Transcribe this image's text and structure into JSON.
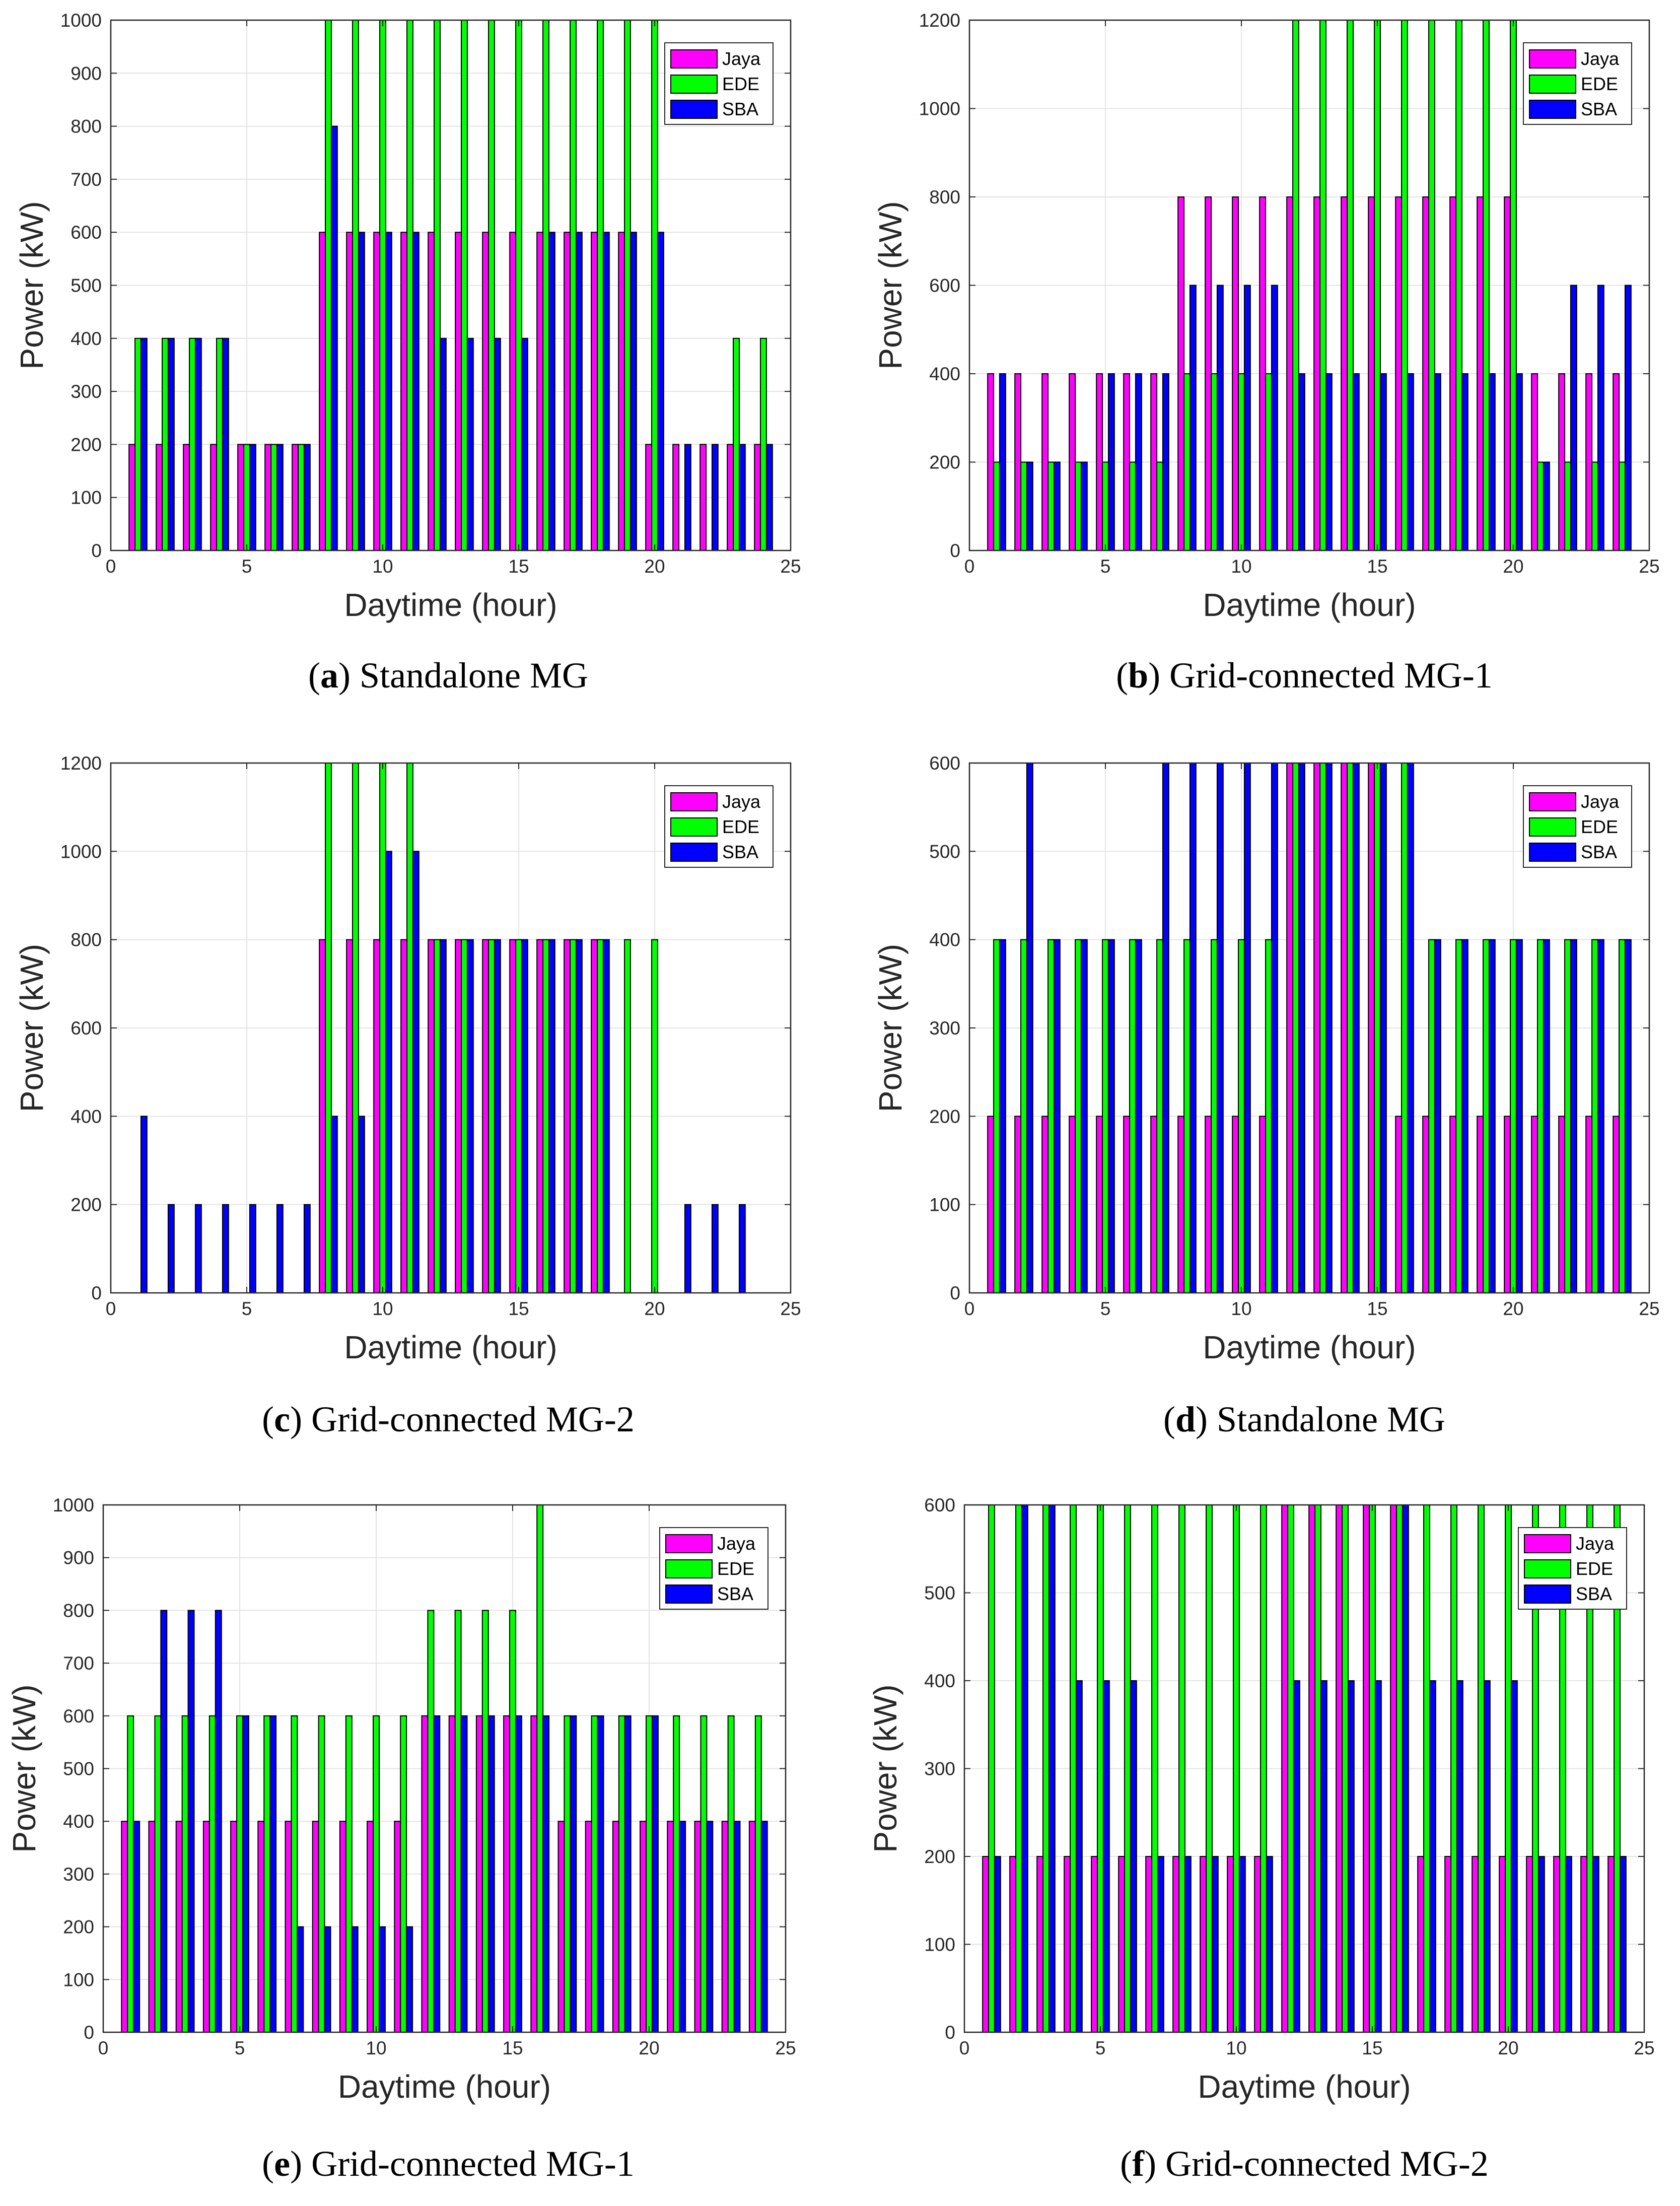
{
  "chart_data": [
    {
      "id": "a",
      "caption_letter": "a",
      "caption_text": "Standalone MG",
      "type": "bar",
      "xlabel": "Daytime (hour)",
      "ylabel": "Power (kW)",
      "xlim": [
        0,
        25
      ],
      "ylim": [
        0,
        1000
      ],
      "xticks": [
        "0",
        "5",
        "10",
        "15",
        "20",
        "25"
      ],
      "yticks": [
        "0",
        "100",
        "200",
        "300",
        "400",
        "500",
        "600",
        "700",
        "800",
        "900",
        "1000"
      ],
      "x": [
        1,
        2,
        3,
        4,
        5,
        6,
        7,
        8,
        9,
        10,
        11,
        12,
        13,
        14,
        15,
        16,
        17,
        18,
        19,
        20,
        21,
        22,
        23,
        24
      ],
      "legend": "top-right",
      "series": [
        {
          "name": "Jaya",
          "color": "#ff00ff",
          "values": [
            200,
            200,
            200,
            200,
            200,
            200,
            200,
            600,
            600,
            600,
            600,
            600,
            600,
            600,
            600,
            600,
            600,
            600,
            600,
            200,
            200,
            200,
            200,
            200
          ]
        },
        {
          "name": "EDE",
          "color": "#00ff00",
          "values": [
            400,
            400,
            400,
            400,
            200,
            200,
            200,
            1000,
            1000,
            1000,
            1000,
            1000,
            1000,
            1000,
            1000,
            1000,
            1000,
            1000,
            1000,
            1000,
            0,
            0,
            400,
            400
          ]
        },
        {
          "name": "SBA",
          "color": "#0000ff",
          "values": [
            400,
            400,
            400,
            400,
            200,
            200,
            200,
            800,
            600,
            600,
            600,
            400,
            400,
            400,
            400,
            600,
            600,
            600,
            600,
            600,
            200,
            200,
            200,
            200
          ]
        }
      ]
    },
    {
      "id": "b",
      "caption_letter": "b",
      "caption_text": "Grid-connected MG-1",
      "type": "bar",
      "xlabel": "Daytime (hour)",
      "ylabel": "Power (kW)",
      "xlim": [
        0,
        25
      ],
      "ylim": [
        0,
        1200
      ],
      "xticks": [
        "0",
        "5",
        "10",
        "15",
        "20",
        "25"
      ],
      "yticks": [
        "0",
        "200",
        "400",
        "600",
        "800",
        "1000",
        "1200"
      ],
      "x": [
        1,
        2,
        3,
        4,
        5,
        6,
        7,
        8,
        9,
        10,
        11,
        12,
        13,
        14,
        15,
        16,
        17,
        18,
        19,
        20,
        21,
        22,
        23,
        24
      ],
      "legend": "top-right",
      "series": [
        {
          "name": "Jaya",
          "color": "#ff00ff",
          "values": [
            400,
            400,
            400,
            400,
            400,
            400,
            400,
            800,
            800,
            800,
            800,
            800,
            800,
            800,
            800,
            800,
            800,
            800,
            800,
            800,
            400,
            400,
            400,
            400
          ]
        },
        {
          "name": "EDE",
          "color": "#00ff00",
          "values": [
            200,
            200,
            200,
            200,
            200,
            200,
            200,
            400,
            400,
            400,
            400,
            1200,
            1200,
            1200,
            1200,
            1200,
            1200,
            1200,
            1200,
            1200,
            200,
            200,
            200,
            200
          ]
        },
        {
          "name": "SBA",
          "color": "#0000ff",
          "values": [
            400,
            200,
            200,
            200,
            400,
            400,
            400,
            600,
            600,
            600,
            600,
            400,
            400,
            400,
            400,
            400,
            400,
            400,
            400,
            400,
            200,
            600,
            600,
            600
          ]
        }
      ]
    },
    {
      "id": "c",
      "caption_letter": "c",
      "caption_text": "Grid-connected MG-2",
      "type": "bar",
      "xlabel": "Daytime (hour)",
      "ylabel": "Power (kW)",
      "xlim": [
        0,
        25
      ],
      "ylim": [
        0,
        1200
      ],
      "xticks": [
        "0",
        "5",
        "10",
        "15",
        "20",
        "25"
      ],
      "yticks": [
        "0",
        "200",
        "400",
        "600",
        "800",
        "1000",
        "1200"
      ],
      "x": [
        1,
        2,
        3,
        4,
        5,
        6,
        7,
        8,
        9,
        10,
        11,
        12,
        13,
        14,
        15,
        16,
        17,
        18,
        19,
        20,
        21,
        22,
        23,
        24
      ],
      "legend": "top-right",
      "series": [
        {
          "name": "Jaya",
          "color": "#ff00ff",
          "values": [
            0,
            0,
            0,
            0,
            0,
            0,
            0,
            800,
            800,
            800,
            800,
            800,
            800,
            800,
            800,
            800,
            800,
            800,
            0,
            0,
            0,
            0,
            0,
            0
          ]
        },
        {
          "name": "EDE",
          "color": "#00ff00",
          "values": [
            0,
            0,
            0,
            0,
            0,
            0,
            0,
            1200,
            1200,
            1200,
            1200,
            800,
            800,
            800,
            800,
            800,
            800,
            800,
            800,
            800,
            0,
            0,
            0,
            0
          ]
        },
        {
          "name": "SBA",
          "color": "#0000ff",
          "values": [
            400,
            200,
            200,
            200,
            200,
            200,
            200,
            400,
            400,
            1000,
            1000,
            800,
            800,
            800,
            800,
            800,
            800,
            800,
            0,
            0,
            200,
            200,
            200,
            0
          ]
        }
      ]
    },
    {
      "id": "d",
      "caption_letter": "d",
      "caption_text": "Standalone MG",
      "type": "bar",
      "xlabel": "Daytime (hour)",
      "ylabel": "Power (kW)",
      "xlim": [
        0,
        25
      ],
      "ylim": [
        0,
        600
      ],
      "xticks": [
        "0",
        "5",
        "10",
        "15",
        "20",
        "25"
      ],
      "yticks": [
        "0",
        "100",
        "200",
        "300",
        "400",
        "500",
        "600"
      ],
      "x": [
        1,
        2,
        3,
        4,
        5,
        6,
        7,
        8,
        9,
        10,
        11,
        12,
        13,
        14,
        15,
        16,
        17,
        18,
        19,
        20,
        21,
        22,
        23,
        24
      ],
      "legend": "top-right",
      "series": [
        {
          "name": "Jaya",
          "color": "#ff00ff",
          "values": [
            200,
            200,
            200,
            200,
            200,
            200,
            200,
            200,
            200,
            200,
            200,
            600,
            600,
            600,
            600,
            200,
            200,
            200,
            200,
            200,
            200,
            200,
            200,
            200
          ]
        },
        {
          "name": "EDE",
          "color": "#00ff00",
          "values": [
            400,
            400,
            400,
            400,
            400,
            400,
            400,
            400,
            400,
            400,
            400,
            600,
            600,
            600,
            600,
            600,
            400,
            400,
            400,
            400,
            400,
            400,
            400,
            400
          ]
        },
        {
          "name": "SBA",
          "color": "#0000ff",
          "values": [
            400,
            600,
            400,
            400,
            400,
            400,
            600,
            600,
            600,
            600,
            600,
            600,
            600,
            600,
            600,
            600,
            400,
            400,
            400,
            400,
            400,
            400,
            400,
            400
          ]
        }
      ]
    },
    {
      "id": "e",
      "caption_letter": "e",
      "caption_text": "Grid-connected MG-1",
      "type": "bar",
      "xlabel": "Daytime (hour)",
      "ylabel": "Power (kW)",
      "xlim": [
        0,
        25
      ],
      "ylim": [
        0,
        1000
      ],
      "xticks": [
        "0",
        "5",
        "10",
        "15",
        "20",
        "25"
      ],
      "yticks": [
        "0",
        "100",
        "200",
        "300",
        "400",
        "500",
        "600",
        "700",
        "800",
        "900",
        "1000"
      ],
      "x": [
        1,
        2,
        3,
        4,
        5,
        6,
        7,
        8,
        9,
        10,
        11,
        12,
        13,
        14,
        15,
        16,
        17,
        18,
        19,
        20,
        21,
        22,
        23,
        24
      ],
      "legend": "top-right",
      "series": [
        {
          "name": "Jaya",
          "color": "#ff00ff",
          "values": [
            400,
            400,
            400,
            400,
            400,
            400,
            400,
            400,
            400,
            400,
            400,
            600,
            600,
            600,
            600,
            600,
            400,
            400,
            400,
            400,
            400,
            400,
            400,
            400
          ]
        },
        {
          "name": "EDE",
          "color": "#00ff00",
          "values": [
            600,
            600,
            600,
            600,
            600,
            600,
            600,
            600,
            600,
            600,
            600,
            800,
            800,
            800,
            800,
            1000,
            600,
            600,
            600,
            600,
            600,
            600,
            600,
            600
          ]
        },
        {
          "name": "SBA",
          "color": "#0000ff",
          "values": [
            400,
            800,
            800,
            800,
            600,
            600,
            200,
            200,
            200,
            200,
            200,
            600,
            600,
            600,
            600,
            600,
            600,
            600,
            600,
            600,
            400,
            400,
            400,
            400
          ]
        }
      ]
    },
    {
      "id": "f",
      "caption_letter": "f",
      "caption_text": "Grid-connected MG-2",
      "type": "bar",
      "xlabel": "Daytime (hour)",
      "ylabel": "Power (kW)",
      "xlim": [
        0,
        25
      ],
      "ylim": [
        0,
        600
      ],
      "xticks": [
        "0",
        "5",
        "10",
        "15",
        "20",
        "25"
      ],
      "yticks": [
        "0",
        "100",
        "200",
        "300",
        "400",
        "500",
        "600"
      ],
      "x": [
        1,
        2,
        3,
        4,
        5,
        6,
        7,
        8,
        9,
        10,
        11,
        12,
        13,
        14,
        15,
        16,
        17,
        18,
        19,
        20,
        21,
        22,
        23,
        24
      ],
      "legend": "top-right",
      "series": [
        {
          "name": "Jaya",
          "color": "#ff00ff",
          "values": [
            200,
            200,
            200,
            200,
            200,
            200,
            200,
            200,
            200,
            200,
            200,
            600,
            600,
            600,
            600,
            600,
            200,
            200,
            200,
            200,
            200,
            200,
            200,
            200
          ]
        },
        {
          "name": "EDE",
          "color": "#00ff00",
          "values": [
            600,
            600,
            600,
            600,
            600,
            600,
            600,
            600,
            600,
            600,
            600,
            600,
            600,
            600,
            600,
            600,
            600,
            600,
            600,
            600,
            600,
            600,
            600,
            600
          ]
        },
        {
          "name": "SBA",
          "color": "#0000ff",
          "values": [
            200,
            600,
            600,
            400,
            400,
            400,
            200,
            200,
            200,
            200,
            200,
            400,
            400,
            400,
            400,
            600,
            400,
            400,
            400,
            400,
            200,
            200,
            200,
            200
          ]
        }
      ]
    }
  ]
}
